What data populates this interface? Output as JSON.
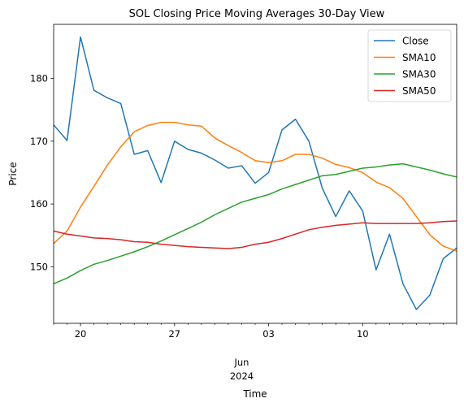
{
  "chart_data": {
    "type": "line",
    "title": "SOL Closing Price Moving Averages 30-Day View",
    "xlabel": "Time",
    "ylabel": "Price",
    "ylim": [
      141.0,
      188.6
    ],
    "legend_position": "top-right",
    "grid": false,
    "x": [
      "2024-05-18",
      "2024-05-19",
      "2024-05-20",
      "2024-05-21",
      "2024-05-22",
      "2024-05-23",
      "2024-05-24",
      "2024-05-25",
      "2024-05-26",
      "2024-05-27",
      "2024-05-28",
      "2024-05-29",
      "2024-05-30",
      "2024-05-31",
      "2024-06-01",
      "2024-06-02",
      "2024-06-03",
      "2024-06-04",
      "2024-06-05",
      "2024-06-06",
      "2024-06-07",
      "2024-06-08",
      "2024-06-09",
      "2024-06-10",
      "2024-06-11",
      "2024-06-12",
      "2024-06-13",
      "2024-06-14",
      "2024-06-15",
      "2024-06-16",
      "2024-06-17"
    ],
    "xlim": [
      "2024-05-18",
      "2024-06-17"
    ],
    "x_ticks_major": [
      {
        "date": "2024-05-20",
        "label": "20"
      },
      {
        "date": "2024-05-27",
        "label": "27"
      },
      {
        "date": "2024-06-03",
        "label": "03"
      },
      {
        "date": "2024-06-10",
        "label": "10"
      }
    ],
    "x_month_label": "Jun",
    "x_year_label": "2024",
    "x_month_label_date": "2024-06-01",
    "y_ticks": [
      150,
      160,
      170,
      180
    ],
    "series": [
      {
        "name": "Close",
        "color": "#1f77b4",
        "values": [
          172.6,
          170.1,
          186.6,
          178.1,
          176.9,
          176.0,
          167.9,
          168.5,
          163.4,
          170.0,
          168.7,
          168.1,
          167.0,
          165.7,
          166.1,
          163.3,
          165.0,
          171.8,
          173.5,
          170.0,
          162.5,
          158.0,
          162.1,
          158.9,
          149.5,
          155.2,
          147.3,
          143.2,
          145.5,
          151.3,
          153.0
        ]
      },
      {
        "name": "SMA10",
        "color": "#ff7f0e",
        "values": [
          153.7,
          155.7,
          159.5,
          162.8,
          166.2,
          169.1,
          171.5,
          172.5,
          173.0,
          173.0,
          172.6,
          172.4,
          170.5,
          169.3,
          168.2,
          166.9,
          166.6,
          166.9,
          167.9,
          167.9,
          167.3,
          166.3,
          165.8,
          165.0,
          163.5,
          162.6,
          160.9,
          158.0,
          155.1,
          153.3,
          152.5
        ]
      },
      {
        "name": "SMA30",
        "color": "#2ca02c",
        "values": [
          147.3,
          148.2,
          149.4,
          150.4,
          151.0,
          151.7,
          152.4,
          153.2,
          154.1,
          155.1,
          156.1,
          157.1,
          158.3,
          159.3,
          160.3,
          160.9,
          161.5,
          162.4,
          163.1,
          163.8,
          164.5,
          164.7,
          165.2,
          165.7,
          165.9,
          166.2,
          166.4,
          165.9,
          165.4,
          164.8,
          164.3
        ]
      },
      {
        "name": "SMA50",
        "color": "#d62728",
        "values": [
          155.7,
          155.2,
          154.9,
          154.6,
          154.5,
          154.3,
          154.0,
          153.9,
          153.6,
          153.4,
          153.2,
          153.1,
          153.0,
          152.9,
          153.1,
          153.6,
          153.9,
          154.5,
          155.2,
          155.9,
          156.3,
          156.6,
          156.8,
          157.0,
          156.9,
          156.9,
          156.9,
          156.9,
          157.0,
          157.2,
          157.3
        ]
      }
    ]
  }
}
